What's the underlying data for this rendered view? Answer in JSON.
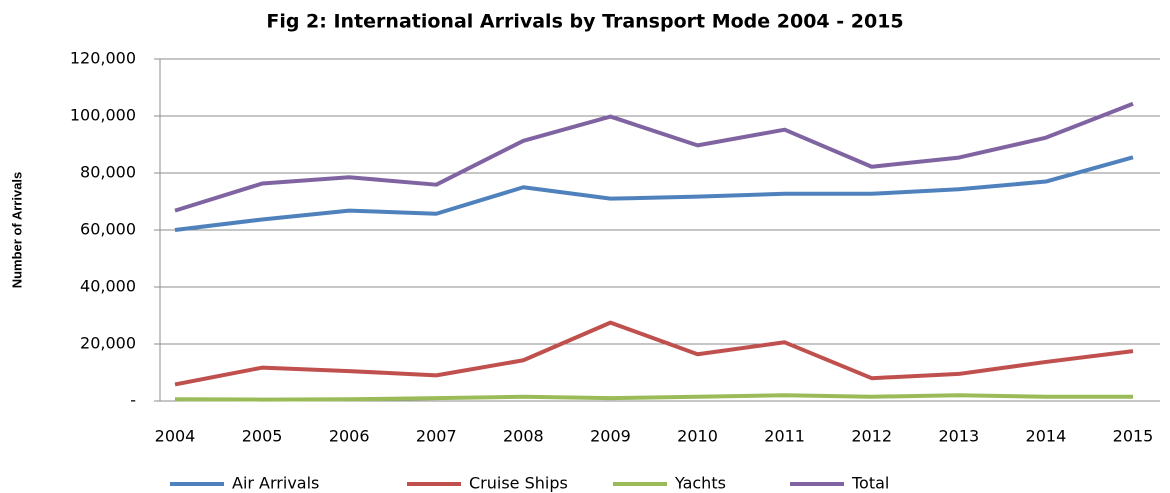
{
  "chart_data": {
    "type": "line",
    "title": "Fig 2:  International Arrivals by Transport Mode 2004 - 2015",
    "y_label": "Number of Arrivals",
    "categories": [
      "2004",
      "2005",
      "2006",
      "2007",
      "2008",
      "2009",
      "2010",
      "2011",
      "2012",
      "2013",
      "2014",
      "2015"
    ],
    "series": [
      {
        "name": "Air Arrivals",
        "color": "#4f81bd",
        "values": [
          60000,
          63700,
          66800,
          65700,
          75000,
          71000,
          71700,
          72700,
          72700,
          74300,
          77000,
          85500
        ]
      },
      {
        "name": "Cruise Ships",
        "color": "#c0504d",
        "values": [
          5800,
          11700,
          10500,
          9000,
          14300,
          27500,
          16400,
          20600,
          8000,
          9500,
          13700,
          17500
        ]
      },
      {
        "name": "Yachts",
        "color": "#9bbb59",
        "values": [
          600,
          500,
          600,
          1000,
          1500,
          1000,
          1500,
          2000,
          1500,
          2000,
          1500,
          1500
        ]
      },
      {
        "name": "Total",
        "color": "#8064a2",
        "values": [
          66800,
          76300,
          78500,
          75900,
          91300,
          99800,
          89700,
          95200,
          82200,
          85400,
          92400,
          104300
        ]
      }
    ],
    "ylim": [
      0,
      120000
    ],
    "yticks": [
      {
        "value": 0,
        "label": "-"
      },
      {
        "value": 20000,
        "label": "20,000"
      },
      {
        "value": 40000,
        "label": "40,000"
      },
      {
        "value": 60000,
        "label": "60,000"
      },
      {
        "value": 80000,
        "label": "80,000"
      },
      {
        "value": 100000,
        "label": "100,000"
      },
      {
        "value": 120000,
        "label": "120,000"
      }
    ],
    "grid": true,
    "legend": "bottom"
  }
}
